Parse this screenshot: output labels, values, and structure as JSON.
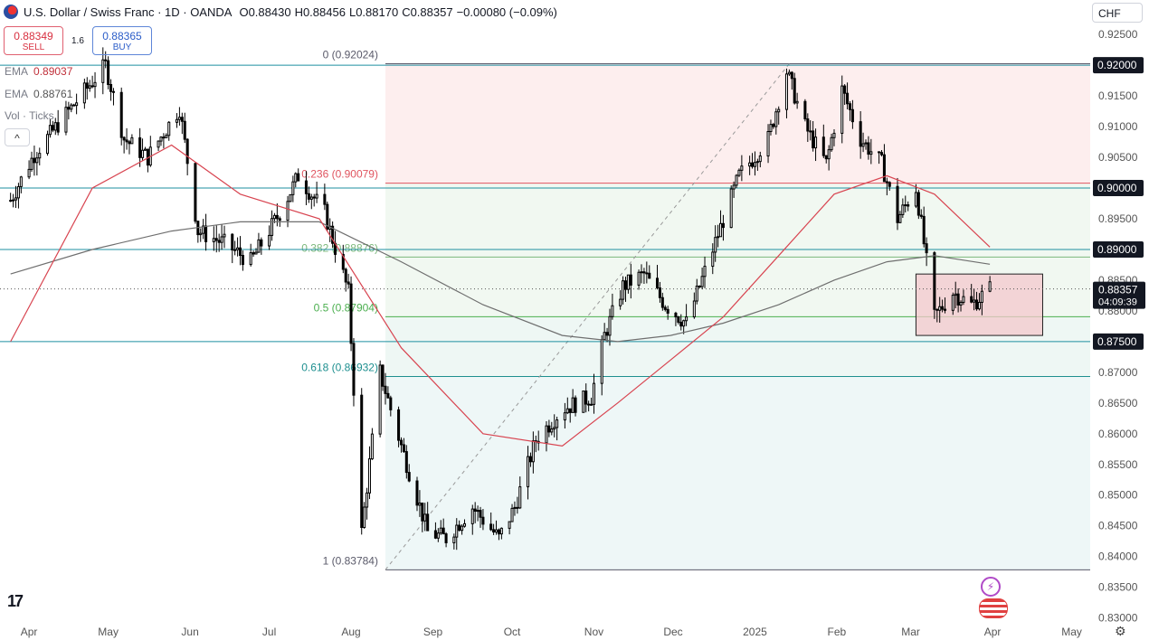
{
  "header": {
    "title": "U.S. Dollar / Swiss Franc · 1D · OANDA",
    "o_label": "O",
    "o_value": "0.88430",
    "h_label": "H",
    "h_value": "0.88456",
    "l_label": "L",
    "l_value": "0.88170",
    "c_label": "C",
    "c_value": "0.88357",
    "change": "−0.00080 (−0.09%)"
  },
  "trade": {
    "sell_price": "0.88349",
    "sell_label": "SELL",
    "spread": "1.6",
    "buy_price": "0.88365",
    "buy_label": "BUY"
  },
  "indicators": {
    "ema1_label": "EMA",
    "ema1_value": "0.89037",
    "ema2_label": "EMA",
    "ema2_value": "0.88761",
    "vol_label": "Vol · Ticks",
    "collapse_glyph": "^"
  },
  "currency": "CHF",
  "logo_text": "17",
  "icons": {
    "settings": "gear-icon",
    "bolt": "lightning-icon",
    "flags": "currency-flags-icon"
  },
  "colors": {
    "up": "#ffffff",
    "down": "#000000",
    "ema_fast": "#d84450",
    "ema_slow": "#6f6f6f",
    "hline": "#1e8fa0",
    "fib_red": "#e05560",
    "fib_green": "#4caf50",
    "fib_teal": "#1e8f8f",
    "box_fill": "#f3c8cc",
    "box_stroke": "#222222",
    "label_bg": "#131722",
    "last_bg": "#131722"
  },
  "chart_data": {
    "type": "candlestick",
    "symbol": "USDCHF",
    "timeframe": "1D",
    "x_ticks": [
      "Apr",
      "May",
      "Jun",
      "Jul",
      "Aug",
      "Sep",
      "Oct",
      "Nov",
      "Dec",
      "2025",
      "Feb",
      "Mar",
      "Apr",
      "May"
    ],
    "y_ticks": [
      "0.92500",
      "0.92000",
      "0.91500",
      "0.91000",
      "0.90500",
      "0.90000",
      "0.89500",
      "0.89000",
      "0.88500",
      "0.88000",
      "0.87500",
      "0.87000",
      "0.86500",
      "0.86000",
      "0.85500",
      "0.85000",
      "0.84500",
      "0.84000",
      "0.83500",
      "0.83000"
    ],
    "ylim": [
      0.8295,
      0.9265
    ],
    "last_price": "0.88357",
    "countdown": "04:09:39",
    "horizontal_levels": [
      {
        "value": 0.92,
        "label": "0.92000"
      },
      {
        "value": 0.9,
        "label": "0.90000"
      },
      {
        "value": 0.89,
        "label": "0.89000"
      },
      {
        "value": 0.875,
        "label": "0.87500"
      }
    ],
    "fibonacci": [
      {
        "ratio": "0",
        "value": "0.92024",
        "label": "0 (0.92024)"
      },
      {
        "ratio": "0.236",
        "value": "0.90079",
        "label": "0.236 (0.90079)"
      },
      {
        "ratio": "0.382",
        "value": "0.88876",
        "label": "0.382 (0.88876)"
      },
      {
        "ratio": "0.5",
        "value": "0.87904",
        "label": "0.5 (0.87904)"
      },
      {
        "ratio": "0.618",
        "value": "0.86932",
        "label": "0.618 (0.86932)"
      },
      {
        "ratio": "1",
        "value": "0.83784",
        "label": "1 (0.83784)"
      }
    ],
    "range_box": {
      "high": 0.886,
      "low": 0.876,
      "from": "2025-03-03",
      "to": "2025-04-20"
    },
    "price_path_points": [
      [
        "2024-03-25",
        0.898
      ],
      [
        "2024-04-03",
        0.9055
      ],
      [
        "2024-04-15",
        0.912
      ],
      [
        "2024-04-30",
        0.92
      ],
      [
        "2024-05-07",
        0.908
      ],
      [
        "2024-05-16",
        0.905
      ],
      [
        "2024-05-28",
        0.913
      ],
      [
        "2024-06-04",
        0.893
      ],
      [
        "2024-06-14",
        0.891
      ],
      [
        "2024-06-24",
        0.888
      ],
      [
        "2024-07-05",
        0.896
      ],
      [
        "2024-07-12",
        0.902
      ],
      [
        "2024-07-22",
        0.896
      ],
      [
        "2024-07-31",
        0.883
      ],
      [
        "2024-08-05",
        0.844
      ],
      [
        "2024-08-12",
        0.87
      ],
      [
        "2024-08-20",
        0.858
      ],
      [
        "2024-08-30",
        0.844
      ],
      [
        "2024-09-06",
        0.843
      ],
      [
        "2024-09-16",
        0.848
      ],
      [
        "2024-09-26",
        0.843
      ],
      [
        "2024-10-02",
        0.848
      ],
      [
        "2024-10-10",
        0.859
      ],
      [
        "2024-10-20",
        0.864
      ],
      [
        "2024-10-31",
        0.866
      ],
      [
        "2024-11-05",
        0.876
      ],
      [
        "2024-11-12",
        0.884
      ],
      [
        "2024-11-20",
        0.886
      ],
      [
        "2024-11-28",
        0.881
      ],
      [
        "2024-12-06",
        0.878
      ],
      [
        "2024-12-16",
        0.89
      ],
      [
        "2024-12-26",
        0.902
      ],
      [
        "2025-01-06",
        0.908
      ],
      [
        "2025-01-13",
        0.919
      ],
      [
        "2025-01-20",
        0.91
      ],
      [
        "2025-01-28",
        0.904
      ],
      [
        "2025-02-03",
        0.916
      ],
      [
        "2025-02-10",
        0.908
      ],
      [
        "2025-02-18",
        0.904
      ],
      [
        "2025-02-24",
        0.895
      ],
      [
        "2025-03-03",
        0.9
      ],
      [
        "2025-03-10",
        0.879
      ],
      [
        "2025-03-17",
        0.883
      ],
      [
        "2025-03-24",
        0.881
      ],
      [
        "2025-03-31",
        0.8836
      ]
    ],
    "ema_fast_points": [
      [
        "2024-03-25",
        0.875
      ],
      [
        "2024-04-25",
        0.9
      ],
      [
        "2024-05-25",
        0.907
      ],
      [
        "2024-06-20",
        0.899
      ],
      [
        "2024-07-20",
        0.895
      ],
      [
        "2024-08-20",
        0.874
      ],
      [
        "2024-09-20",
        0.86
      ],
      [
        "2024-10-20",
        0.858
      ],
      [
        "2024-11-10",
        0.865
      ],
      [
        "2024-11-30",
        0.872
      ],
      [
        "2024-12-20",
        0.879
      ],
      [
        "2025-01-10",
        0.889
      ],
      [
        "2025-01-31",
        0.899
      ],
      [
        "2025-02-20",
        0.902
      ],
      [
        "2025-03-10",
        0.899
      ],
      [
        "2025-03-31",
        0.8904
      ]
    ],
    "ema_slow_points": [
      [
        "2024-03-25",
        0.886
      ],
      [
        "2024-04-25",
        0.89
      ],
      [
        "2024-05-25",
        0.893
      ],
      [
        "2024-06-20",
        0.8945
      ],
      [
        "2024-07-20",
        0.8945
      ],
      [
        "2024-08-20",
        0.888
      ],
      [
        "2024-09-20",
        0.881
      ],
      [
        "2024-10-20",
        0.876
      ],
      [
        "2024-11-10",
        0.875
      ],
      [
        "2024-11-30",
        0.876
      ],
      [
        "2024-12-20",
        0.878
      ],
      [
        "2025-01-10",
        0.881
      ],
      [
        "2025-01-31",
        0.885
      ],
      [
        "2025-02-20",
        0.888
      ],
      [
        "2025-03-10",
        0.889
      ],
      [
        "2025-03-31",
        0.8876
      ]
    ]
  }
}
